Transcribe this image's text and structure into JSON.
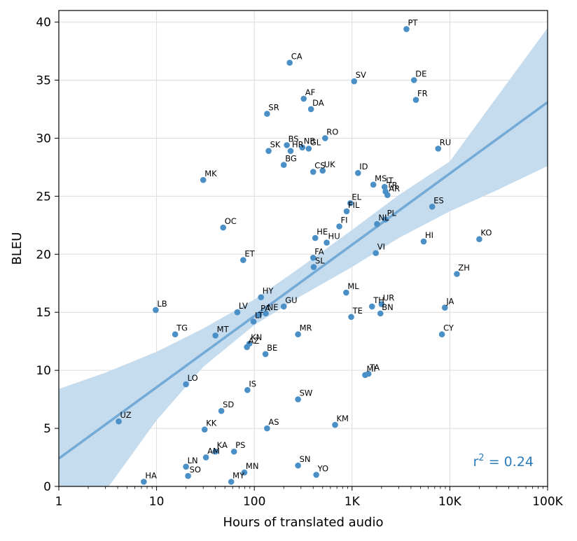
{
  "chart_data": {
    "type": "scatter",
    "xlabel": "Hours of translated audio",
    "ylabel": "BLEU",
    "x_scale": "log",
    "xlim": [
      1,
      100000
    ],
    "ylim": [
      0,
      41
    ],
    "x_ticks": [
      {
        "value": 1,
        "label": "1"
      },
      {
        "value": 10,
        "label": "10"
      },
      {
        "value": 100,
        "label": "100"
      },
      {
        "value": 1000,
        "label": "1K"
      },
      {
        "value": 10000,
        "label": "10K"
      },
      {
        "value": 100000,
        "label": "100K"
      }
    ],
    "y_ticks": [
      0,
      5,
      10,
      15,
      20,
      25,
      30,
      35,
      40
    ],
    "grid": true,
    "point_color": "#4a8fc6",
    "fit_line_color": "#74aad6",
    "band_color": "#c5dbee",
    "annotation": {
      "prefix": "r",
      "exponent": "2",
      "suffix": " = 0.24"
    },
    "regression": {
      "line": [
        [
          1,
          2.4
        ],
        [
          100000,
          33.1
        ]
      ],
      "band_upper": [
        [
          1,
          8.4
        ],
        [
          3,
          9.8
        ],
        [
          10,
          11.6
        ],
        [
          30,
          13.6
        ],
        [
          100,
          16.1
        ],
        [
          300,
          18.9
        ],
        [
          1000,
          22.1
        ],
        [
          3000,
          25.1
        ],
        [
          10000,
          28.0
        ],
        [
          30000,
          33.5
        ],
        [
          100000,
          39.5
        ]
      ],
      "band_lower": [
        [
          1,
          -6.5
        ],
        [
          3,
          -0.4
        ],
        [
          10,
          5.7
        ],
        [
          30,
          10.3
        ],
        [
          100,
          13.9
        ],
        [
          300,
          16.4
        ],
        [
          1000,
          18.9
        ],
        [
          3000,
          21.4
        ],
        [
          10000,
          23.7
        ],
        [
          30000,
          25.5
        ],
        [
          100000,
          27.6
        ]
      ]
    },
    "points": [
      {
        "label": "PT",
        "x": 3600,
        "y": 39.4
      },
      {
        "label": "CA",
        "x": 230,
        "y": 36.5
      },
      {
        "label": "SV",
        "x": 1050,
        "y": 34.9
      },
      {
        "label": "DE",
        "x": 4300,
        "y": 35.0
      },
      {
        "label": "AF",
        "x": 320,
        "y": 33.4
      },
      {
        "label": "DA",
        "x": 380,
        "y": 32.5
      },
      {
        "label": "FR",
        "x": 4500,
        "y": 33.3
      },
      {
        "label": "SR",
        "x": 135,
        "y": 32.1
      },
      {
        "label": "RO",
        "x": 530,
        "y": 30.0
      },
      {
        "label": "BS",
        "x": 215,
        "y": 29.4
      },
      {
        "label": "NB",
        "x": 310,
        "y": 29.2
      },
      {
        "label": "GL",
        "x": 360,
        "y": 29.1
      },
      {
        "label": "SK",
        "x": 140,
        "y": 28.9
      },
      {
        "label": "HR",
        "x": 235,
        "y": 28.9
      },
      {
        "label": "RU",
        "x": 7600,
        "y": 29.1
      },
      {
        "label": "BG",
        "x": 200,
        "y": 27.7
      },
      {
        "label": "CS",
        "x": 400,
        "y": 27.1
      },
      {
        "label": "UK",
        "x": 500,
        "y": 27.2
      },
      {
        "label": "ID",
        "x": 1150,
        "y": 27.0
      },
      {
        "label": "MK",
        "x": 30,
        "y": 26.4
      },
      {
        "label": "MS",
        "x": 1650,
        "y": 26.0
      },
      {
        "label": "IT",
        "x": 2150,
        "y": 25.8
      },
      {
        "label": "TR",
        "x": 2200,
        "y": 25.4
      },
      {
        "label": "AR",
        "x": 2300,
        "y": 25.1
      },
      {
        "label": "EL",
        "x": 960,
        "y": 24.4
      },
      {
        "label": "ES",
        "x": 6600,
        "y": 24.1
      },
      {
        "label": "FIL",
        "x": 880,
        "y": 23.7
      },
      {
        "label": "PL",
        "x": 2200,
        "y": 23.0
      },
      {
        "label": "FI",
        "x": 740,
        "y": 22.4
      },
      {
        "label": "NL",
        "x": 1800,
        "y": 22.6
      },
      {
        "label": "OC",
        "x": 48,
        "y": 22.3
      },
      {
        "label": "KO",
        "x": 20000,
        "y": 21.3
      },
      {
        "label": "HE",
        "x": 420,
        "y": 21.4
      },
      {
        "label": "HU",
        "x": 550,
        "y": 21.0
      },
      {
        "label": "HI",
        "x": 5400,
        "y": 21.1
      },
      {
        "label": "VI",
        "x": 1750,
        "y": 20.1
      },
      {
        "label": "FA",
        "x": 400,
        "y": 19.7
      },
      {
        "label": "ET",
        "x": 77,
        "y": 19.5
      },
      {
        "label": "SL",
        "x": 405,
        "y": 18.9
      },
      {
        "label": "ZH",
        "x": 11800,
        "y": 18.3
      },
      {
        "label": "ML",
        "x": 870,
        "y": 16.7
      },
      {
        "label": "HY",
        "x": 117,
        "y": 16.3
      },
      {
        "label": "GU",
        "x": 200,
        "y": 15.5
      },
      {
        "label": "UR",
        "x": 2000,
        "y": 15.7
      },
      {
        "label": "JA",
        "x": 8900,
        "y": 15.4
      },
      {
        "label": "TH",
        "x": 1600,
        "y": 15.5
      },
      {
        "label": "LB",
        "x": 9.8,
        "y": 15.2
      },
      {
        "label": "LV",
        "x": 67,
        "y": 15.0
      },
      {
        "label": "PA",
        "x": 112,
        "y": 14.8
      },
      {
        "label": "NE",
        "x": 131,
        "y": 14.9
      },
      {
        "label": "TE",
        "x": 980,
        "y": 14.6
      },
      {
        "label": "BN",
        "x": 1950,
        "y": 14.9
      },
      {
        "label": "LT",
        "x": 98,
        "y": 14.2
      },
      {
        "label": "TG",
        "x": 15.5,
        "y": 13.1
      },
      {
        "label": "MT",
        "x": 40,
        "y": 13.0
      },
      {
        "label": "MR",
        "x": 280,
        "y": 13.1
      },
      {
        "label": "CY",
        "x": 8300,
        "y": 13.1
      },
      {
        "label": "KN",
        "x": 89,
        "y": 12.3
      },
      {
        "label": "AZ",
        "x": 84,
        "y": 12.0
      },
      {
        "label": "BE",
        "x": 130,
        "y": 11.4
      },
      {
        "label": "MI",
        "x": 1360,
        "y": 9.6
      },
      {
        "label": "TA",
        "x": 1470,
        "y": 9.7
      },
      {
        "label": "LO",
        "x": 20,
        "y": 8.8
      },
      {
        "label": "IS",
        "x": 85,
        "y": 8.3
      },
      {
        "label": "SW",
        "x": 280,
        "y": 7.5
      },
      {
        "label": "SD",
        "x": 46,
        "y": 6.5
      },
      {
        "label": "UZ",
        "x": 4.1,
        "y": 5.6
      },
      {
        "label": "AS",
        "x": 135,
        "y": 5.0
      },
      {
        "label": "KM",
        "x": 670,
        "y": 5.3
      },
      {
        "label": "KK",
        "x": 31,
        "y": 4.9
      },
      {
        "label": "KA",
        "x": 40,
        "y": 3.0
      },
      {
        "label": "PS",
        "x": 62,
        "y": 3.0
      },
      {
        "label": "AM",
        "x": 32,
        "y": 2.5
      },
      {
        "label": "LN",
        "x": 20,
        "y": 1.7
      },
      {
        "label": "SN",
        "x": 280,
        "y": 1.8
      },
      {
        "label": "MN",
        "x": 79,
        "y": 1.2
      },
      {
        "label": "YO",
        "x": 430,
        "y": 1.0
      },
      {
        "label": "SO",
        "x": 21,
        "y": 0.9
      },
      {
        "label": "HA",
        "x": 7.4,
        "y": 0.4
      },
      {
        "label": "MY",
        "x": 58,
        "y": 0.4
      }
    ]
  }
}
